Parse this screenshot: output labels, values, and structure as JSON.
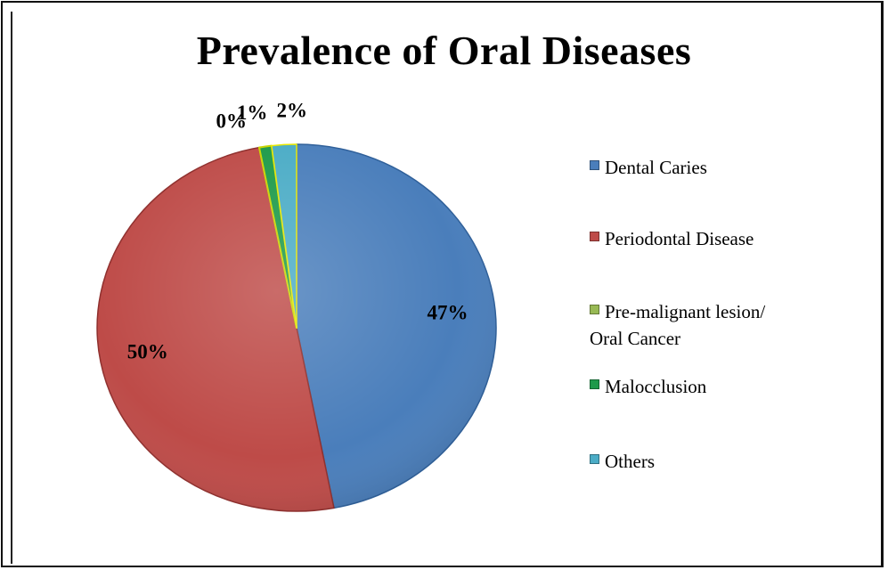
{
  "chart_data": {
    "type": "pie",
    "title": "Prevalence of Oral Diseases",
    "categories": [
      "Dental Caries",
      "Periodontal Disease",
      "Pre-malignant lesion/ Oral Cancer",
      "Malocclusion",
      "Others"
    ],
    "values": [
      47,
      50,
      0,
      1,
      2
    ],
    "value_labels": [
      "47%",
      "50%",
      "0%",
      "1%",
      "2%"
    ],
    "colors": [
      "#4a7ebb",
      "#be4b48",
      "#98b954",
      "#1e9a4a",
      "#4bacc6"
    ],
    "slice_borders": [
      "#2e5f99",
      "#8f2f2d",
      "#c9d400",
      "#c9d400",
      "#e8e800"
    ],
    "legend_position": "right",
    "start_angle_deg": 0,
    "direction": "clockwise"
  },
  "legend": {
    "items": [
      {
        "label": "Dental Caries",
        "color": "#4a7ebb"
      },
      {
        "label": "Periodontal Disease",
        "color": "#be4b48"
      },
      {
        "label_line1": "Pre-malignant lesion/",
        "label_line2": "Oral Cancer",
        "color": "#98b954"
      },
      {
        "label": "Malocclusion",
        "color": "#1e9a4a"
      },
      {
        "label": "Others",
        "color": "#4bacc6"
      }
    ]
  }
}
